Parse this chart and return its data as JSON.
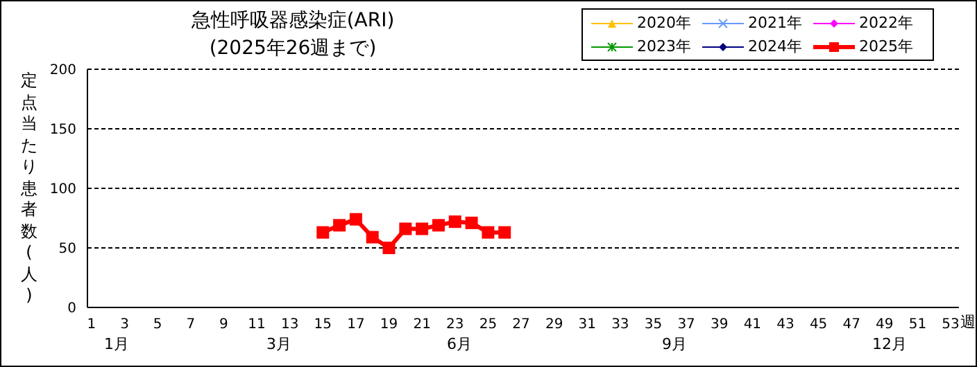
{
  "chart_data": {
    "type": "line",
    "title": "急性呼吸器感染症(ARI)",
    "subtitle": "(2025年26週まで)",
    "ylabel": "定点当たり患者数(人)",
    "xlabel": "週",
    "xlim": [
      0.75,
      53.5
    ],
    "xticks": [
      1,
      3,
      5,
      7,
      9,
      11,
      13,
      15,
      17,
      19,
      21,
      23,
      25,
      27,
      29,
      31,
      33,
      35,
      37,
      39,
      41,
      43,
      45,
      47,
      49,
      51,
      53
    ],
    "ylim": [
      0,
      200
    ],
    "yticks": [
      0,
      50,
      100,
      150,
      200
    ],
    "grid": "y",
    "legend": "top right",
    "annotations": [
      "1月",
      "3月",
      "6月",
      "9月",
      "12月"
    ],
    "series": [
      {
        "name": "2020年",
        "color": "#ffc000",
        "marker": "triangle"
      },
      {
        "name": "2021年",
        "color": "#6699ff",
        "marker": "cross"
      },
      {
        "name": "2022年",
        "color": "#ff00ff",
        "marker": "diamond"
      },
      {
        "name": "2023年",
        "color": "#009900",
        "marker": "star"
      },
      {
        "name": "2024年",
        "color": "#000080",
        "marker": "diamond"
      },
      {
        "name": "2025年",
        "color": "#ff0000",
        "marker": "square",
        "x": [
          15,
          16,
          17,
          18,
          19,
          20,
          21,
          22,
          23,
          24,
          25,
          26
        ],
        "values": [
          63,
          69,
          74,
          59,
          50,
          66,
          66,
          69,
          72,
          71,
          63,
          63
        ]
      }
    ]
  }
}
